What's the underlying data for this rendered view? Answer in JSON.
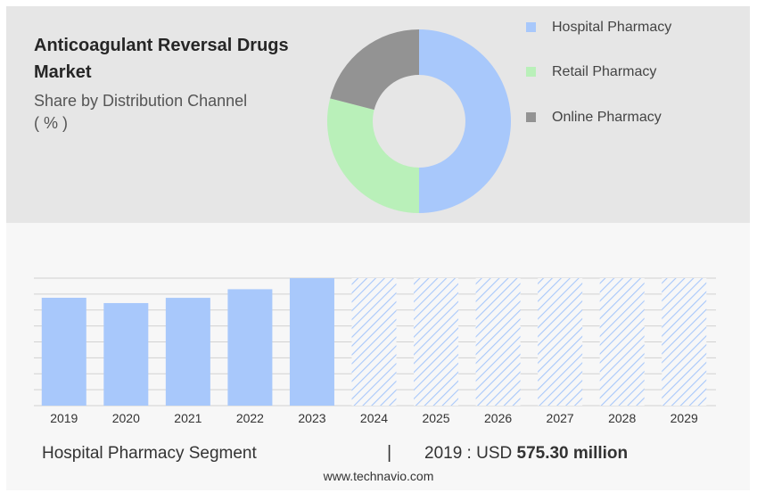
{
  "header": {
    "title": "Anticoagulant Reversal Drugs Market",
    "subtitle": "Share by Distribution Channel",
    "unit": "( % )"
  },
  "footer": {
    "segment_label": "Hospital Pharmacy Segment",
    "separator": "|",
    "year_prefix": "2019 : USD ",
    "value_text": "575.30 million",
    "source": "www.technavio.com"
  },
  "colors": {
    "hospital": "#a8c8fb",
    "retail": "#b9f0b9",
    "online": "#939393",
    "background_top": "#e6e6e6",
    "background_bottom": "#f7f7f7"
  },
  "chart_data": [
    {
      "type": "pie",
      "donut": true,
      "title": "Share by Distribution Channel",
      "legend_position": "right",
      "labels": [
        "Hospital Pharmacy",
        "Retail Pharmacy",
        "Online Pharmacy"
      ],
      "values": [
        50,
        29,
        21
      ],
      "colors": [
        "#a8c8fb",
        "#b9f0b9",
        "#939393"
      ]
    },
    {
      "type": "bar",
      "title": "",
      "xlabel": "",
      "ylabel": "",
      "grid": true,
      "categories": [
        "2019",
        "2020",
        "2021",
        "2022",
        "2023",
        "2024",
        "2025",
        "2026",
        "2027",
        "2028",
        "2029"
      ],
      "values": [
        575.3,
        547,
        575,
        621,
        680,
        680,
        680,
        680,
        680,
        680,
        680
      ],
      "forecast": [
        false,
        false,
        false,
        false,
        false,
        true,
        true,
        true,
        true,
        true,
        true
      ],
      "ylim": [
        0,
        680
      ],
      "color": "#a8c8fb"
    }
  ]
}
